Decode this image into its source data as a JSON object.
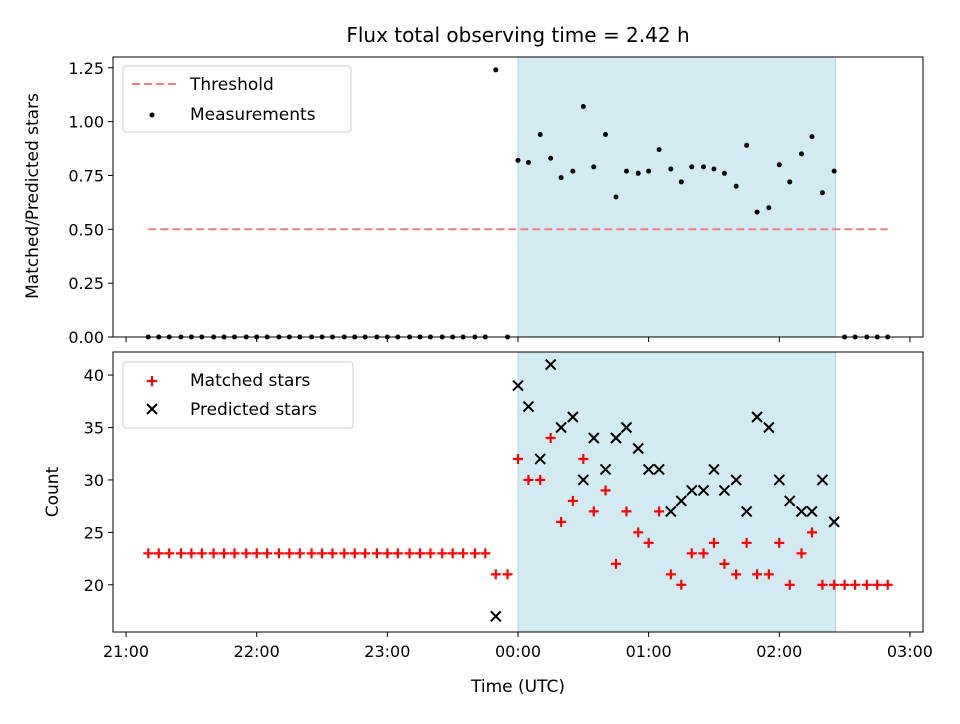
{
  "title": "Flux total observing time = 2.42 h",
  "top": {
    "ylabel": "Matched/Predicted stars",
    "ylim": [
      0,
      1.3
    ],
    "yticks": [
      "0.00",
      "0.25",
      "0.50",
      "0.75",
      "1.00",
      "1.25"
    ],
    "legend": {
      "threshold": "Threshold",
      "measurements": "Measurements"
    }
  },
  "bottom": {
    "ylabel": "Count",
    "xlabel": "Time (UTC)",
    "ylim": [
      15.5,
      42.2
    ],
    "yticks": [
      "20",
      "25",
      "30",
      "35",
      "40"
    ],
    "xticks": [
      "21:00",
      "22:00",
      "23:00",
      "00:00",
      "01:00",
      "02:00",
      "03:00"
    ],
    "legend": {
      "matched": "Matched stars",
      "predicted": "Predicted stars"
    }
  },
  "colors": {
    "threshold": "#f08080",
    "measurements": "#000000",
    "matched": "#ff0000",
    "predicted": "#000000",
    "shade": "#add8e6"
  },
  "chart_data": {
    "type": "scatter",
    "x_unit": "hours relative to 00:00 UTC",
    "xlim": [
      -3.1,
      3.1
    ],
    "shaded_interval": [
      0.0,
      2.43
    ],
    "threshold": {
      "value": 0.5,
      "x_range": [
        -2.83,
        2.83
      ]
    },
    "measurements": {
      "x": [
        -2.83,
        -2.75,
        -2.67,
        -2.58,
        -2.5,
        -2.42,
        -2.33,
        -2.25,
        -2.17,
        -2.08,
        -2.0,
        -1.92,
        -1.83,
        -1.75,
        -1.67,
        -1.58,
        -1.5,
        -1.42,
        -1.33,
        -1.25,
        -1.17,
        -1.08,
        -1.0,
        -0.92,
        -0.83,
        -0.75,
        -0.67,
        -0.58,
        -0.5,
        -0.42,
        -0.33,
        -0.25,
        -0.17,
        -0.08,
        0.0,
        0.08,
        0.17,
        0.25,
        0.33,
        0.42,
        0.5,
        0.58,
        0.67,
        0.75,
        0.83,
        0.92,
        1.0,
        1.08,
        1.17,
        1.25,
        1.33,
        1.42,
        1.5,
        1.58,
        1.67,
        1.75,
        1.83,
        1.92,
        2.0,
        2.08,
        2.17,
        2.25,
        2.33,
        2.42,
        2.5,
        2.58,
        2.67,
        2.75,
        2.83
      ],
      "y": [
        0,
        0,
        0,
        0,
        0,
        0,
        0,
        0,
        0,
        0,
        0,
        0,
        0,
        0,
        0,
        0,
        0,
        0,
        0,
        0,
        0,
        0,
        0,
        0,
        0,
        0,
        0,
        0,
        0,
        0,
        0,
        0,
        1.24,
        0,
        0.82,
        0.81,
        0.94,
        0.83,
        0.74,
        0.77,
        1.07,
        0.79,
        0.94,
        0.65,
        0.77,
        0.76,
        0.77,
        0.87,
        0.78,
        0.72,
        0.79,
        0.79,
        0.78,
        0.76,
        0.7,
        0.89,
        0.58,
        0.6,
        0.8,
        0.72,
        0.85,
        0.93,
        0.67,
        0.77,
        0,
        0,
        0,
        0,
        0
      ]
    },
    "matched_stars": {
      "x": [
        -2.83,
        -2.75,
        -2.67,
        -2.58,
        -2.5,
        -2.42,
        -2.33,
        -2.25,
        -2.17,
        -2.08,
        -2.0,
        -1.92,
        -1.83,
        -1.75,
        -1.67,
        -1.58,
        -1.5,
        -1.42,
        -1.33,
        -1.25,
        -1.17,
        -1.08,
        -1.0,
        -0.92,
        -0.83,
        -0.75,
        -0.67,
        -0.58,
        -0.5,
        -0.42,
        -0.33,
        -0.25,
        -0.17,
        -0.08,
        0.0,
        0.08,
        0.17,
        0.25,
        0.33,
        0.42,
        0.5,
        0.58,
        0.67,
        0.75,
        0.83,
        0.92,
        1.0,
        1.08,
        1.17,
        1.25,
        1.33,
        1.42,
        1.5,
        1.58,
        1.67,
        1.75,
        1.83,
        1.92,
        2.0,
        2.08,
        2.17,
        2.25,
        2.33,
        2.42,
        2.5,
        2.58,
        2.67,
        2.75,
        2.83
      ],
      "y": [
        23,
        23,
        23,
        23,
        23,
        23,
        23,
        23,
        23,
        23,
        23,
        23,
        23,
        23,
        23,
        23,
        23,
        23,
        23,
        23,
        23,
        23,
        23,
        23,
        23,
        23,
        23,
        23,
        23,
        23,
        23,
        23,
        21,
        21,
        32,
        30,
        30,
        34,
        26,
        28,
        32,
        27,
        29,
        22,
        27,
        25,
        24,
        27,
        21,
        20,
        23,
        23,
        24,
        22,
        21,
        24,
        21,
        21,
        24,
        20,
        23,
        25,
        20,
        20,
        20,
        20,
        20,
        20,
        20
      ]
    },
    "predicted_stars": {
      "x": [
        -0.17,
        0.0,
        0.08,
        0.17,
        0.25,
        0.33,
        0.42,
        0.5,
        0.58,
        0.67,
        0.75,
        0.83,
        0.92,
        1.0,
        1.08,
        1.17,
        1.25,
        1.33,
        1.42,
        1.5,
        1.58,
        1.67,
        1.75,
        1.83,
        1.92,
        2.0,
        2.08,
        2.17,
        2.25,
        2.33,
        2.42
      ],
      "y": [
        17,
        39,
        37,
        32,
        41,
        35,
        36,
        30,
        34,
        31,
        34,
        35,
        33,
        31,
        31,
        27,
        28,
        29,
        29,
        31,
        29,
        30,
        27,
        36,
        35,
        30,
        28,
        27,
        27,
        30,
        26
      ]
    }
  }
}
